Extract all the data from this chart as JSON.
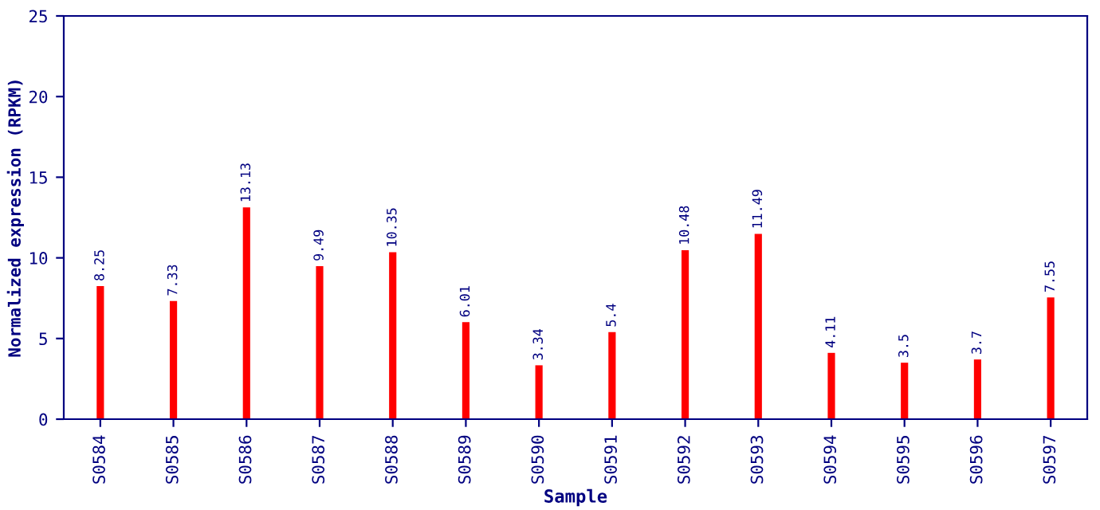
{
  "chart_data": {
    "type": "bar",
    "xlabel": "Sample",
    "ylabel": "Normalized expression (RPKM)",
    "categories": [
      "S0584",
      "S0585",
      "S0586",
      "S0587",
      "S0588",
      "S0589",
      "S0590",
      "S0591",
      "S0592",
      "S0593",
      "S0594",
      "S0595",
      "S0596",
      "S0597"
    ],
    "values": [
      8.25,
      7.33,
      13.13,
      9.49,
      10.35,
      6.01,
      3.34,
      5.4,
      10.48,
      11.49,
      4.11,
      3.5,
      3.7,
      7.55
    ],
    "color": "#ff0000",
    "data_labels": true,
    "grid": false,
    "ylim": [
      0,
      25
    ],
    "yticks": [
      0,
      5,
      10,
      15,
      20,
      25
    ]
  }
}
